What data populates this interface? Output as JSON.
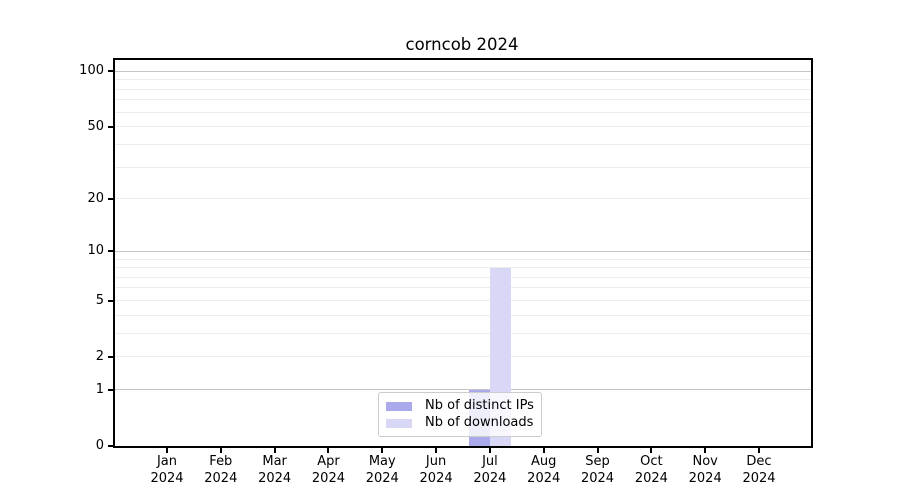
{
  "title": "corncob 2024",
  "chart_data": {
    "type": "bar",
    "title": "corncob 2024",
    "categories": [
      "Jan 2024",
      "Feb 2024",
      "Mar 2024",
      "Apr 2024",
      "May 2024",
      "Jun 2024",
      "Jul 2024",
      "Aug 2024",
      "Sep 2024",
      "Oct 2024",
      "Nov 2024",
      "Dec 2024"
    ],
    "series": [
      {
        "name": "Nb of distinct IPs",
        "color": "#a9a9ec",
        "values": [
          0,
          0,
          0,
          0,
          0,
          0,
          1,
          0,
          0,
          0,
          0,
          0
        ]
      },
      {
        "name": "Nb of downloads",
        "color": "#d8d8f6",
        "values": [
          0,
          0,
          0,
          0,
          0,
          0,
          8,
          0,
          0,
          0,
          0,
          0
        ]
      }
    ],
    "xlabel": "",
    "ylabel": "",
    "yscale": "log10(1+x)",
    "ylim": [
      0,
      115
    ],
    "y_ticks": [
      0,
      1,
      2,
      5,
      10,
      20,
      50,
      100
    ],
    "y_gridlines_major": [
      1,
      10,
      100
    ],
    "y_gridlines_minor": [
      2,
      3,
      4,
      5,
      6,
      7,
      8,
      9,
      20,
      30,
      40,
      50,
      60,
      70,
      80,
      90
    ],
    "grid": "horizontal",
    "legend_position": "bottom-center-inside",
    "colors": {
      "grid_major": "#c5c5c5",
      "grid_minor": "#ededed",
      "axis": "#000000",
      "legend_border": "#cccccc"
    }
  }
}
